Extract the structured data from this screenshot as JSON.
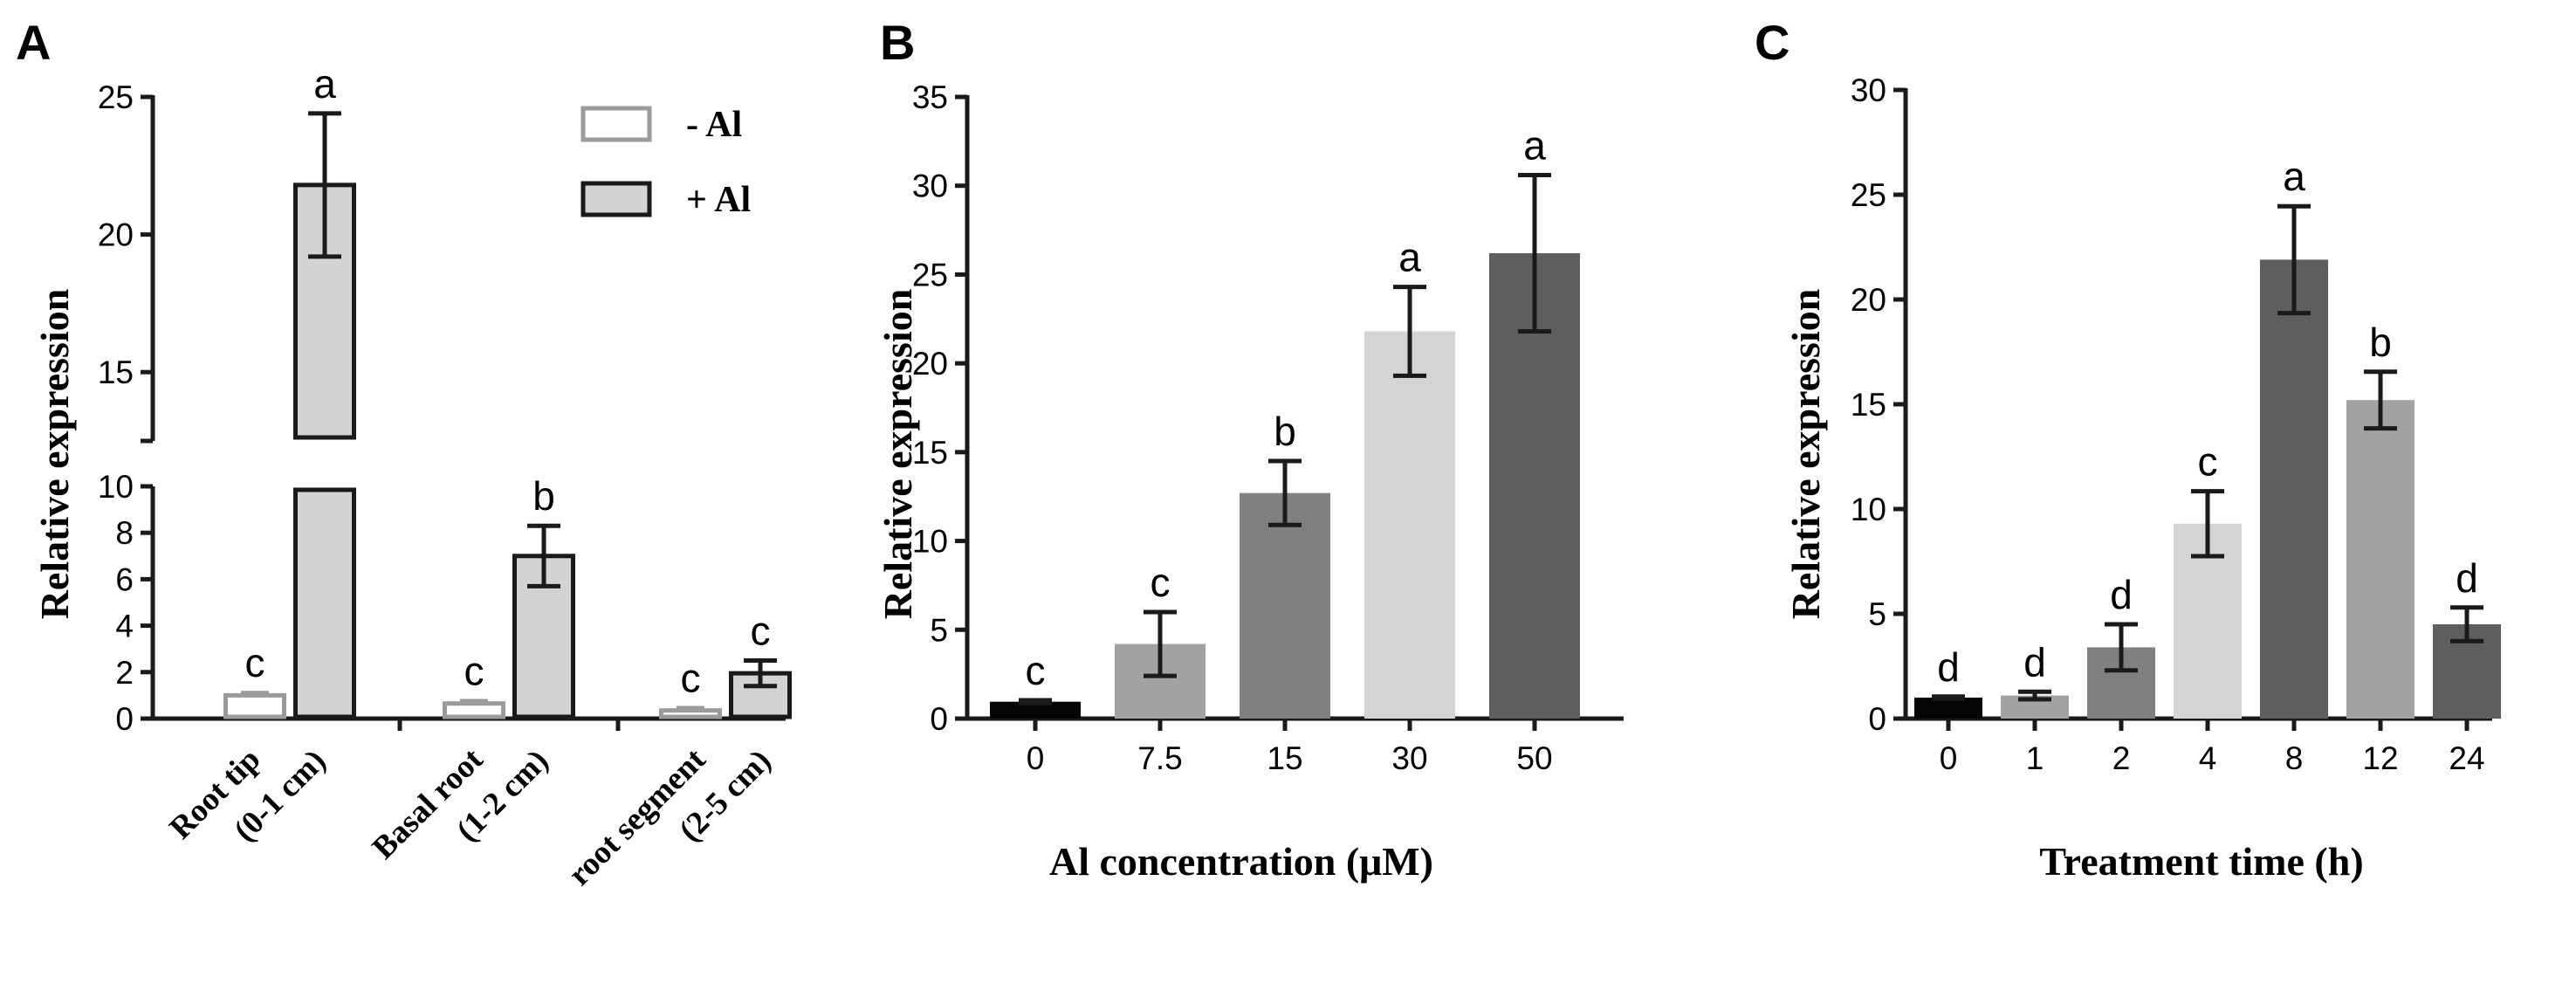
{
  "chart_data": [
    {
      "panel": "A",
      "type": "bar",
      "ylabel": "Relative expression",
      "broken_axis": {
        "lower": [
          0,
          10
        ],
        "lower_ticks": [
          0,
          2,
          4,
          6,
          8,
          10
        ],
        "upper": [
          12.5,
          25
        ],
        "upper_ticks": [
          15,
          20,
          25
        ]
      },
      "categories": [
        {
          "line1": "Root tip",
          "line2": "(0-1 cm)"
        },
        {
          "line1": "Basal root",
          "line2": "(1-2 cm)"
        },
        {
          "line1": "root segment",
          "line2": "(2-5 cm)"
        }
      ],
      "series": [
        {
          "name": "- Al",
          "fill": "#ffffff",
          "stroke": "#9b9b9b",
          "values": [
            1.0,
            0.65,
            0.35
          ],
          "errors": [
            0.12,
            0.12,
            0.12
          ],
          "letters": [
            "c",
            "c",
            "c"
          ]
        },
        {
          "name": "+ Al",
          "fill": "#d3d3d3",
          "stroke": "#1a1a1a",
          "values": [
            21.8,
            7.0,
            1.95
          ],
          "errors": [
            2.6,
            1.3,
            0.55
          ],
          "letters": [
            "a",
            "b",
            "c"
          ]
        }
      ],
      "legend_position": "top-right"
    },
    {
      "panel": "B",
      "type": "bar",
      "xlabel": "Al concentration (μM)",
      "ylabel": "Relative expression",
      "ylim": [
        0,
        35
      ],
      "yticks": [
        0,
        5,
        10,
        15,
        20,
        25,
        30,
        35
      ],
      "categories": [
        "0",
        "7.5",
        "15",
        "30",
        "50"
      ],
      "values": [
        0.95,
        4.2,
        12.7,
        21.8,
        26.2
      ],
      "errors": [
        0.08,
        1.8,
        1.8,
        2.5,
        4.4
      ],
      "letters": [
        "c",
        "c",
        "b",
        "a",
        "a"
      ],
      "colors": [
        "#050505",
        "#a2a2a2",
        "#808080",
        "#d4d4d4",
        "#5e5e5e"
      ]
    },
    {
      "panel": "C",
      "type": "bar",
      "xlabel": "Treatment time (h)",
      "ylabel": "Relative expression",
      "ylim": [
        0,
        30
      ],
      "yticks": [
        0,
        5,
        10,
        15,
        20,
        25,
        30
      ],
      "categories": [
        "0",
        "1",
        "2",
        "4",
        "8",
        "12",
        "24"
      ],
      "values": [
        1.0,
        1.1,
        3.4,
        9.3,
        21.9,
        15.2,
        4.5
      ],
      "errors": [
        0.05,
        0.18,
        1.1,
        1.55,
        2.55,
        1.35,
        0.8
      ],
      "letters": [
        "d",
        "d",
        "d",
        "c",
        "a",
        "b",
        "d"
      ],
      "colors": [
        "#050505",
        "#a2a2a2",
        "#808080",
        "#d4d4d4",
        "#5e5e5e",
        "#a2a2a2",
        "#5e5e5e"
      ]
    }
  ]
}
